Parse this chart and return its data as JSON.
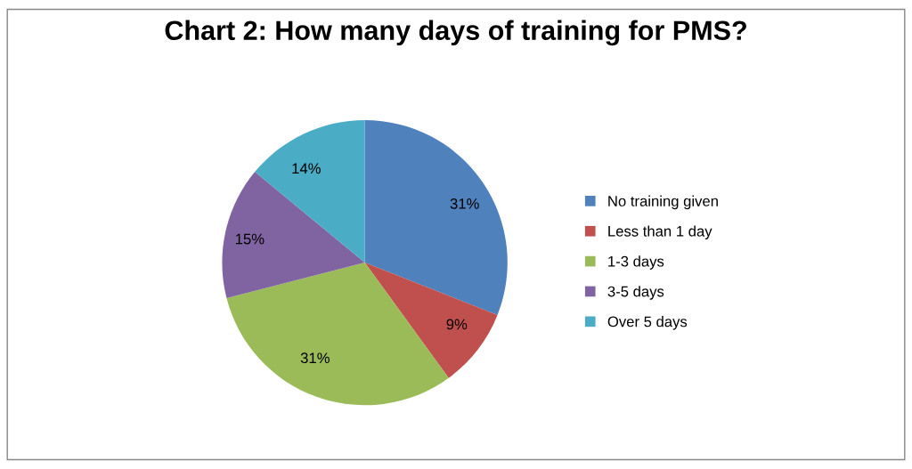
{
  "chart_data": {
    "type": "pie",
    "title": "Chart 2: How many days of training for PMS?",
    "categories": [
      "No training given",
      "Less than 1 day",
      "1-3 days",
      "3-5 days",
      "Over 5 days"
    ],
    "values": [
      31,
      9,
      31,
      15,
      14
    ],
    "value_labels": [
      "31%",
      "9%",
      "31%",
      "15%",
      "14%"
    ],
    "colors": [
      "#4f81bd",
      "#c0504d",
      "#9bbb59",
      "#8064a2",
      "#4bacc6"
    ],
    "legend": "right"
  }
}
